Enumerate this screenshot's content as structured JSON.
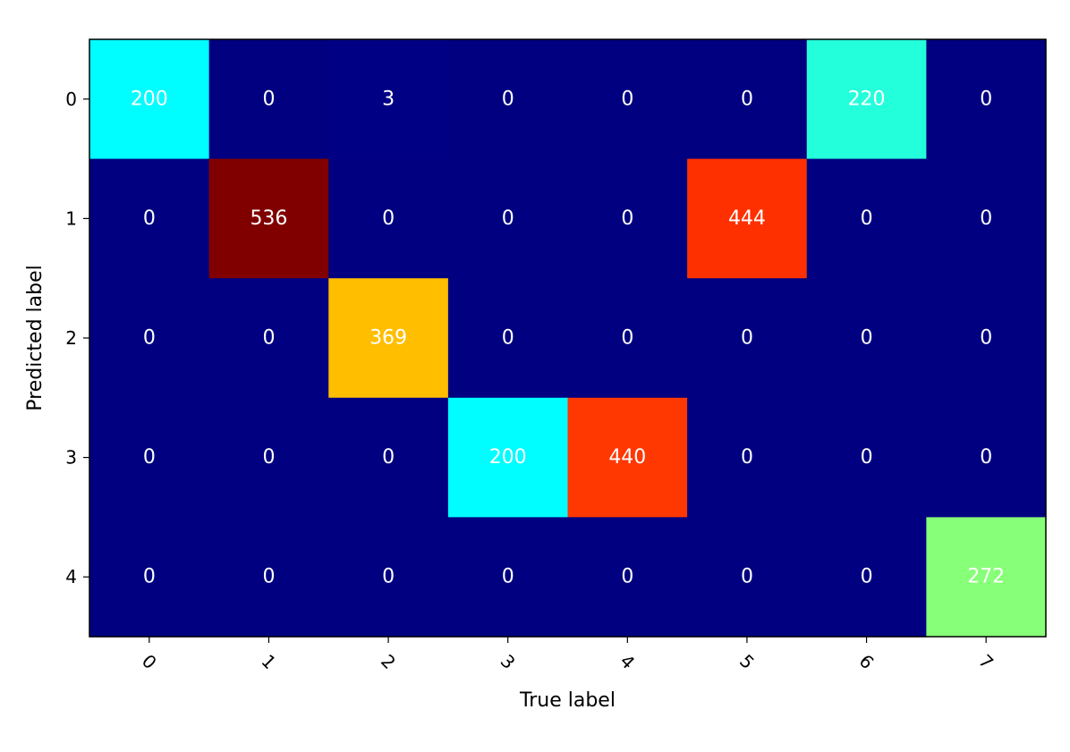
{
  "chart_data": {
    "type": "heatmap",
    "colormap": "jet",
    "x_categories": [
      "0",
      "1",
      "2",
      "3",
      "4",
      "5",
      "6",
      "7"
    ],
    "y_categories": [
      "0",
      "1",
      "2",
      "3",
      "4"
    ],
    "xlabel": "True label",
    "ylabel": "Predicted label",
    "values": [
      [
        200,
        0,
        3,
        0,
        0,
        0,
        220,
        0
      ],
      [
        0,
        536,
        0,
        0,
        0,
        444,
        0,
        0
      ],
      [
        0,
        0,
        369,
        0,
        0,
        0,
        0,
        0
      ],
      [
        0,
        0,
        0,
        200,
        440,
        0,
        0,
        0
      ],
      [
        0,
        0,
        0,
        0,
        0,
        0,
        0,
        272
      ]
    ],
    "value_range": [
      0,
      536
    ],
    "cell_text_color": "#ffffff",
    "grid": false,
    "x_tick_rotation": "45 degrees"
  }
}
